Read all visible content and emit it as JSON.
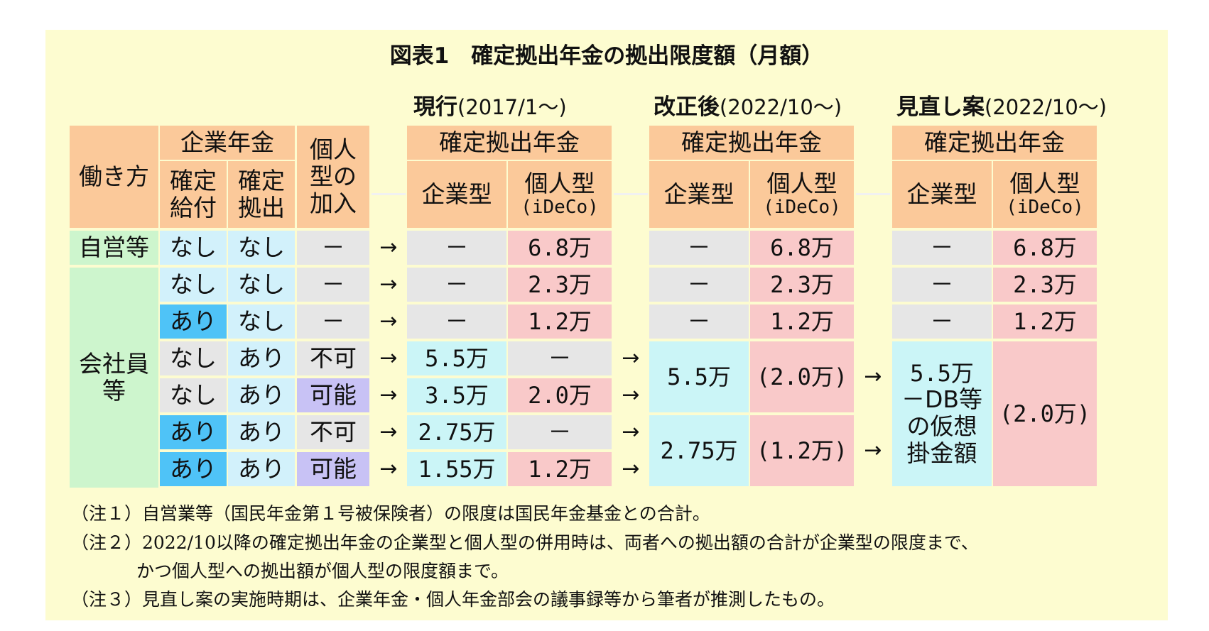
{
  "title": "図表1　確定拠出年金の拠出限度額（月額）",
  "scenarios": {
    "current": {
      "bold": "現行",
      "rest": "(2017/1～)"
    },
    "reform": {
      "bold": "改正後",
      "rest": "(2022/10～)"
    },
    "review": {
      "bold": "見直し案",
      "rest": "(2022/10～)"
    }
  },
  "headers": {
    "workstyle": "働き方",
    "corporate_pension": "企業年金",
    "db_line1": "確定",
    "db_line2": "給付",
    "dc_line1": "確定",
    "dc_line2": "拠出",
    "ind_line1": "個人",
    "ind_line2": "型の",
    "ind_line3": "加入",
    "dc_plan": "確定拠出年金",
    "corporate_type": "企業型",
    "individual_type": "個人型",
    "ideco": "(iDeCo)"
  },
  "groups": {
    "self_employed": "自営等",
    "employee_line1": "会社員",
    "employee_line2": "等"
  },
  "rows": [
    {
      "db": "なし",
      "dc": "なし",
      "ind": "－",
      "cur_corp": "－",
      "cur_ind": "6.8万",
      "new_corp": "－",
      "new_ind": "6.8万",
      "rev_corp": "－",
      "rev_ind": "6.8万"
    },
    {
      "db": "なし",
      "dc": "なし",
      "ind": "－",
      "cur_corp": "－",
      "cur_ind": "2.3万",
      "new_corp": "－",
      "new_ind": "2.3万",
      "rev_corp": "－",
      "rev_ind": "2.3万"
    },
    {
      "db": "あり",
      "dc": "なし",
      "ind": "－",
      "cur_corp": "－",
      "cur_ind": "1.2万",
      "new_corp": "－",
      "new_ind": "1.2万",
      "rev_corp": "－",
      "rev_ind": "1.2万"
    },
    {
      "db": "なし",
      "dc": "あり",
      "ind": "不可",
      "cur_corp": "5.5万",
      "cur_ind": "－"
    },
    {
      "db": "なし",
      "dc": "あり",
      "ind": "可能",
      "cur_corp": "3.5万",
      "cur_ind": "2.0万"
    },
    {
      "db": "あり",
      "dc": "あり",
      "ind": "不可",
      "cur_corp": "2.75万",
      "cur_ind": "－"
    },
    {
      "db": "あり",
      "dc": "あり",
      "ind": "可能",
      "cur_corp": "1.55万",
      "cur_ind": "1.2万"
    }
  ],
  "merged": {
    "new_corp_a": "5.5万",
    "new_ind_a": "(2.0万)",
    "new_corp_b": "2.75万",
    "new_ind_b": "(1.2万)",
    "rev_corp_l1": "5.5万",
    "rev_corp_l2": "－DB等",
    "rev_corp_l3": "の仮想",
    "rev_corp_l4": "掛金額",
    "rev_ind": "(2.0万)"
  },
  "arrow": "→",
  "notes": [
    "（注１）自営業等（国民年金第１号被保険者）の限度は国民年金基金との合計。",
    "（注２）2022/10以降の確定拠出年金の企業型と個人型の併用時は、両者への拠出額の合計が企業型の限度まで、",
    "かつ個人型への拠出額が個人型の限度額まで。",
    "（注３）見直し案の実施時期は、企業年金・個人年金部会の議事録等から筆者が推測したもの。"
  ]
}
